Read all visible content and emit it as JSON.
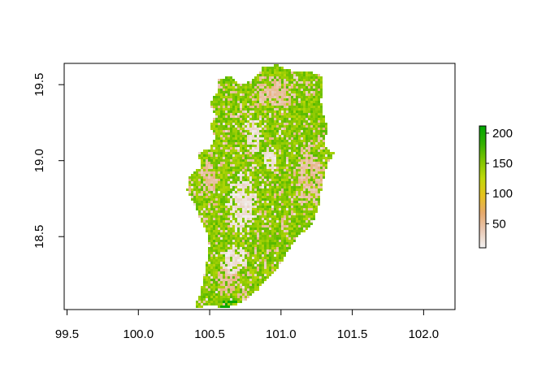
{
  "chart_data": {
    "type": "heatmap",
    "title": "",
    "xlabel": "",
    "ylabel": "",
    "xlim": [
      99.48,
      102.22
    ],
    "ylim": [
      18.02,
      19.64
    ],
    "x_ticks": [
      {
        "value": 99.5,
        "label": "99.5"
      },
      {
        "value": 100.0,
        "label": "100.0"
      },
      {
        "value": 100.5,
        "label": "100.5"
      },
      {
        "value": 101.0,
        "label": "101.0"
      },
      {
        "value": 101.5,
        "label": "101.5"
      },
      {
        "value": 102.0,
        "label": "102.0"
      }
    ],
    "y_ticks": [
      {
        "value": 18.5,
        "label": "18.5"
      },
      {
        "value": 19.0,
        "label": "19.0"
      },
      {
        "value": 19.5,
        "label": "19.5"
      }
    ],
    "legend": {
      "position": "right",
      "range": [
        10,
        212
      ],
      "ticks": [
        {
          "value": 50,
          "label": "50"
        },
        {
          "value": 100,
          "label": "100"
        },
        {
          "value": 150,
          "label": "150"
        },
        {
          "value": 200,
          "label": "200"
        }
      ],
      "colors": [
        "#f2f2f2",
        "#e8c8b4",
        "#e6a96c",
        "#e6c21c",
        "#bfd80a",
        "#7ec500",
        "#32b000",
        "#00a600"
      ]
    },
    "raster": {
      "region_outline": [
        [
          100.42,
          18.02
        ],
        [
          100.47,
          18.05
        ],
        [
          100.55,
          18.04
        ],
        [
          100.62,
          18.03
        ],
        [
          100.68,
          18.05
        ],
        [
          100.76,
          18.09
        ],
        [
          100.84,
          18.15
        ],
        [
          100.92,
          18.24
        ],
        [
          101.0,
          18.32
        ],
        [
          101.06,
          18.42
        ],
        [
          101.12,
          18.5
        ],
        [
          101.22,
          18.58
        ],
        [
          101.26,
          18.68
        ],
        [
          101.28,
          18.78
        ],
        [
          101.3,
          18.88
        ],
        [
          101.32,
          18.96
        ],
        [
          101.37,
          19.05
        ],
        [
          101.3,
          19.1
        ],
        [
          101.33,
          19.22
        ],
        [
          101.3,
          19.3
        ],
        [
          101.28,
          19.4
        ],
        [
          101.3,
          19.5
        ],
        [
          101.28,
          19.56
        ],
        [
          101.2,
          19.59
        ],
        [
          101.12,
          19.58
        ],
        [
          101.04,
          19.6
        ],
        [
          100.98,
          19.63
        ],
        [
          100.88,
          19.62
        ],
        [
          100.84,
          19.57
        ],
        [
          100.78,
          19.52
        ],
        [
          100.72,
          19.5
        ],
        [
          100.64,
          19.56
        ],
        [
          100.56,
          19.53
        ],
        [
          100.56,
          19.46
        ],
        [
          100.52,
          19.42
        ],
        [
          100.5,
          19.36
        ],
        [
          100.54,
          19.3
        ],
        [
          100.5,
          19.22
        ],
        [
          100.54,
          19.16
        ],
        [
          100.5,
          19.08
        ],
        [
          100.42,
          19.05
        ],
        [
          100.44,
          18.96
        ],
        [
          100.36,
          18.9
        ],
        [
          100.34,
          18.8
        ],
        [
          100.4,
          18.7
        ],
        [
          100.44,
          18.6
        ],
        [
          100.48,
          18.52
        ],
        [
          100.5,
          18.44
        ],
        [
          100.48,
          18.34
        ],
        [
          100.46,
          18.24
        ],
        [
          100.44,
          18.14
        ],
        [
          100.4,
          18.06
        ]
      ],
      "low_zones": [
        {
          "center": [
            100.72,
            18.72
          ],
          "radius": [
            0.1,
            0.22
          ],
          "value": 12
        },
        {
          "center": [
            100.8,
            19.18
          ],
          "radius": [
            0.07,
            0.14
          ],
          "value": 15
        },
        {
          "center": [
            100.66,
            18.36
          ],
          "radius": [
            0.1,
            0.1
          ],
          "value": 20
        },
        {
          "center": [
            100.92,
            19.02
          ],
          "radius": [
            0.05,
            0.08
          ],
          "value": 18
        }
      ],
      "mid_zones": [
        {
          "center": [
            101.18,
            18.9
          ],
          "radius": [
            0.12,
            0.22
          ],
          "value": 40
        },
        {
          "center": [
            100.95,
            19.45
          ],
          "radius": [
            0.18,
            0.12
          ],
          "value": 45
        },
        {
          "center": [
            100.48,
            18.88
          ],
          "radius": [
            0.07,
            0.14
          ],
          "value": 38
        },
        {
          "center": [
            100.62,
            18.22
          ],
          "radius": [
            0.09,
            0.1
          ],
          "value": 42
        }
      ],
      "base_value": 150,
      "high_strip_value": 205
    }
  }
}
